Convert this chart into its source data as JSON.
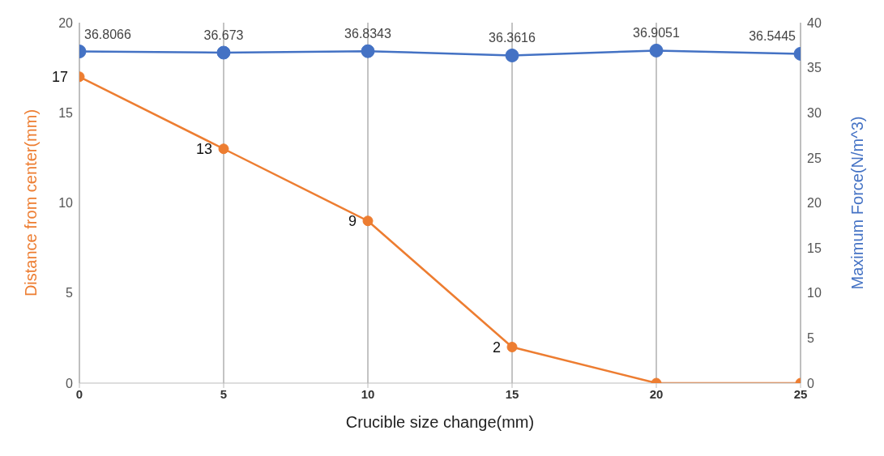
{
  "chart_data": {
    "type": "line",
    "xlabel": "Crucible size change(mm)",
    "ylabel": "Distance from center(mm)",
    "y2label": "Maximum Force(N/m^3)",
    "x": [
      0,
      5,
      10,
      15,
      20,
      25
    ],
    "xlim": [
      0,
      25
    ],
    "xticks": [
      0,
      5,
      10,
      15,
      20,
      25
    ],
    "ylim": [
      0,
      20
    ],
    "yticks": [
      0,
      5,
      10,
      15,
      20
    ],
    "y2lim": [
      0,
      40
    ],
    "y2ticks": [
      0,
      5,
      10,
      15,
      20,
      25,
      30,
      35,
      40
    ],
    "grid": "x",
    "legend": false,
    "marker": "circle",
    "line_style": "solid",
    "series": [
      {
        "color": "#ed7d31",
        "values": [
          17,
          13,
          9,
          2,
          0,
          0
        ],
        "value_labels": [
          "17",
          "13",
          "9",
          "2",
          null,
          null
        ]
      },
      {
        "color": "#4472c4",
        "axis": "y2",
        "values": [
          36.8066,
          36.673,
          36.8343,
          36.3616,
          36.9051,
          36.5445
        ],
        "value_labels": [
          "36.8066",
          "36.673",
          "36.8343",
          "36.3616",
          "36.9051",
          "36.5445"
        ]
      }
    ]
  }
}
